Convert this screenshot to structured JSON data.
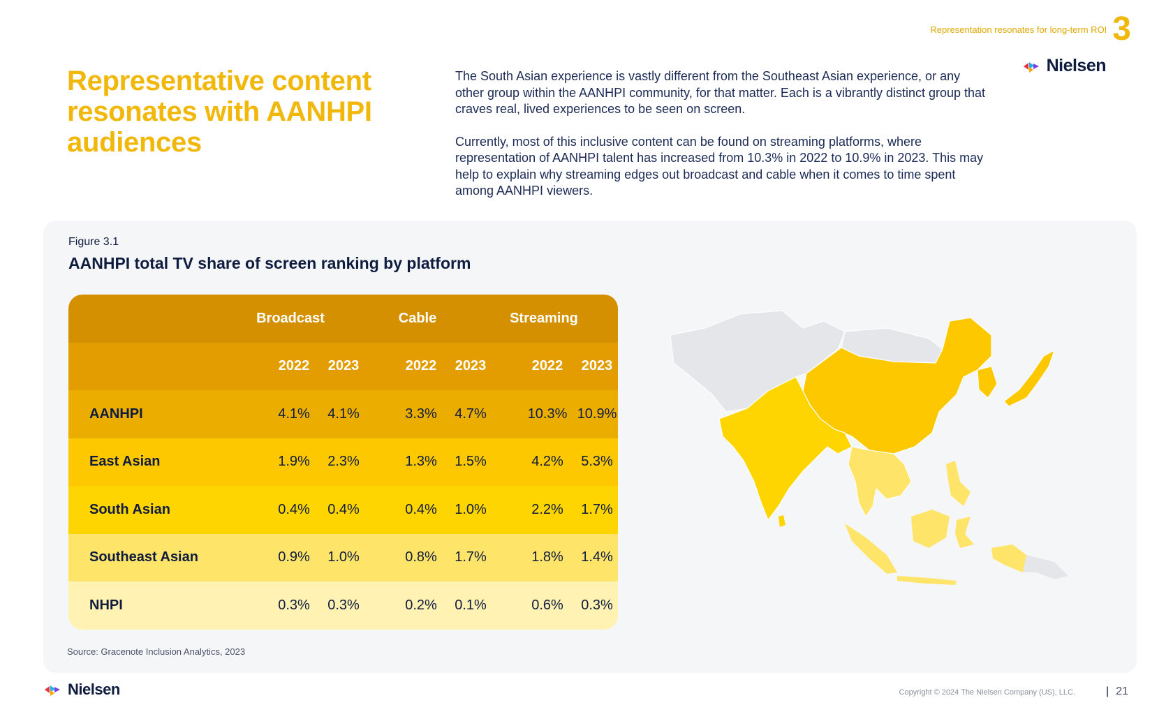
{
  "header": {
    "section_label": "Representation resonates for long-term ROI",
    "section_number": "3"
  },
  "brand": {
    "name": "Nielsen",
    "colors": {
      "primary_yellow": "#f1b80b",
      "navy": "#0f1c3f"
    }
  },
  "headline": "Representative content resonates with AANHPI audiences",
  "intro": {
    "p1": "The South Asian experience is vastly different from the Southeast Asian experience, or any other group within the AANHPI community, for that matter. Each is a vibrantly distinct group that craves real, lived experiences to be seen on screen.",
    "p2": "Currently, most of this inclusive content can be found on streaming platforms, where representation of AANHPI talent has increased from 10.3% in 2022 to 10.9% in 2023. This may help to explain why streaming edges out broadcast and cable when it comes to time spent among AANHPI viewers."
  },
  "figure": {
    "label": "Figure 3.1",
    "title": "AANHPI total TV share of screen ranking by platform",
    "source": "Source: Gracenote Inclusion Analytics, 2023"
  },
  "chart_data": {
    "type": "table",
    "title": "AANHPI total TV share of screen ranking by platform",
    "platforms": [
      "Broadcast",
      "Cable",
      "Streaming"
    ],
    "years": [
      "2022",
      "2023"
    ],
    "rows": [
      {
        "group": "AANHPI",
        "color": "#ebad00",
        "values": [
          "4.1%",
          "4.1%",
          "3.3%",
          "4.7%",
          "10.3%",
          "10.9%"
        ]
      },
      {
        "group": "East Asian",
        "color": "#fdc800",
        "values": [
          "1.9%",
          "2.3%",
          "1.3%",
          "1.5%",
          "4.2%",
          "5.3%"
        ]
      },
      {
        "group": "South Asian",
        "color": "#ffd500",
        "values": [
          "0.4%",
          "0.4%",
          "0.4%",
          "1.0%",
          "2.2%",
          "1.7%"
        ]
      },
      {
        "group": "Southeast Asian",
        "color": "#ffe46a",
        "values": [
          "0.9%",
          "1.0%",
          "0.8%",
          "1.7%",
          "1.8%",
          "1.4%"
        ]
      },
      {
        "group": "NHPI",
        "color": "#fff2b2",
        "values": [
          "0.3%",
          "0.3%",
          "0.2%",
          "0.1%",
          "0.6%",
          "0.3%"
        ]
      }
    ],
    "header_colors": [
      "#d59000",
      "#e39d00"
    ]
  },
  "map": {
    "regions": [
      {
        "name": "east-asia",
        "color": "#fdc800"
      },
      {
        "name": "south-asia",
        "color": "#ffd500"
      },
      {
        "name": "southeast-asia",
        "color": "#ffe46a"
      },
      {
        "name": "other",
        "color": "#e4e6ea"
      }
    ]
  },
  "footer": {
    "copyright": "Copyright © 2024 The Nielsen Company (US), LLC.",
    "separator": "|",
    "page": "21"
  }
}
